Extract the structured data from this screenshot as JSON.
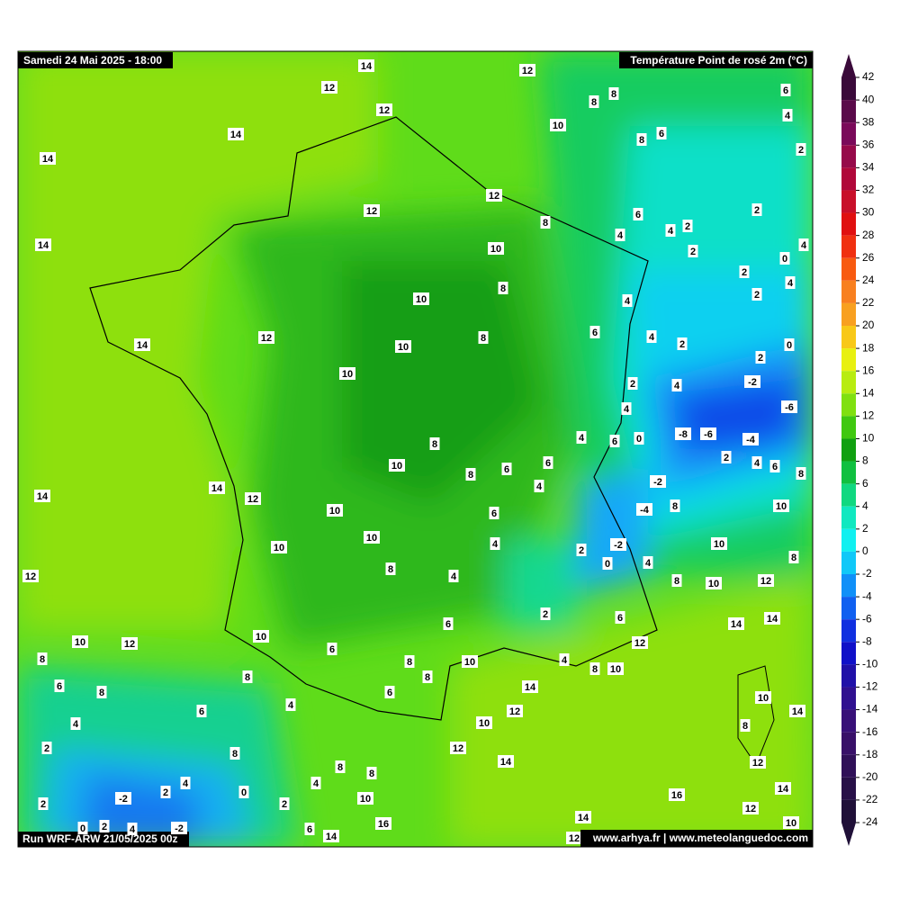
{
  "header": {
    "date": "Samedi 24 Mai 2025 - 18:00",
    "title": "Température Point de rosé 2m (°C)"
  },
  "footer": {
    "run": "Run WRF-ARW 21/05/2025 00z",
    "credit": "www.arhya.fr | www.meteolanguedoc.com"
  },
  "colorbar": {
    "ticks": [
      42,
      40,
      38,
      36,
      34,
      32,
      30,
      28,
      26,
      24,
      22,
      20,
      18,
      16,
      14,
      12,
      10,
      8,
      6,
      4,
      2,
      0,
      -2,
      -4,
      -6,
      -8,
      -10,
      -12,
      -14,
      -16,
      -18,
      -20,
      -22,
      -24
    ],
    "colors": [
      "#3a0a3a",
      "#5a0a4a",
      "#7a0a5a",
      "#960a4a",
      "#b0083a",
      "#c8102a",
      "#e01010",
      "#f03010",
      "#f85a10",
      "#f88020",
      "#f8a020",
      "#f8c818",
      "#e8f010",
      "#b8ec10",
      "#80e010",
      "#40c810",
      "#10a010",
      "#10c040",
      "#10d880",
      "#10e8c0",
      "#10f0f0",
      "#10c8f8",
      "#1090f8",
      "#1060f0",
      "#1030e0",
      "#1010c8",
      "#2010a8",
      "#301090",
      "#381078",
      "#381068",
      "#301058",
      "#281048",
      "#201038"
    ]
  },
  "points": [
    14,
    12,
    12,
    8,
    8,
    6,
    12,
    4,
    10,
    14,
    8,
    6,
    2,
    14,
    12,
    12,
    6,
    2,
    8,
    4,
    2,
    14,
    4,
    2,
    10,
    4,
    0,
    2,
    4,
    8,
    2,
    10,
    4,
    12,
    14,
    8,
    6,
    4,
    2,
    0,
    10,
    2,
    10,
    2,
    4,
    -2,
    4,
    -6,
    -8,
    -6,
    -4,
    4,
    6,
    0,
    8,
    2,
    4,
    6,
    8,
    10,
    8,
    6,
    6,
    14,
    12,
    14,
    4,
    -2,
    10,
    -4,
    8,
    10,
    6,
    10,
    4,
    2,
    -2,
    10,
    10,
    8,
    8,
    0,
    4,
    12,
    4,
    8,
    10,
    12,
    2,
    6,
    6,
    14,
    14,
    10,
    10,
    12,
    12,
    6,
    8,
    4,
    8,
    10,
    10,
    8,
    8,
    8,
    6,
    8,
    14,
    10,
    14,
    6,
    4,
    6,
    12,
    10,
    4,
    8,
    2,
    8,
    12,
    14,
    12,
    8,
    8,
    4,
    2,
    4,
    0,
    -2,
    16,
    14,
    10,
    2,
    2,
    12,
    14,
    16,
    10,
    0,
    2,
    4,
    -2,
    6,
    14,
    12
  ]
}
